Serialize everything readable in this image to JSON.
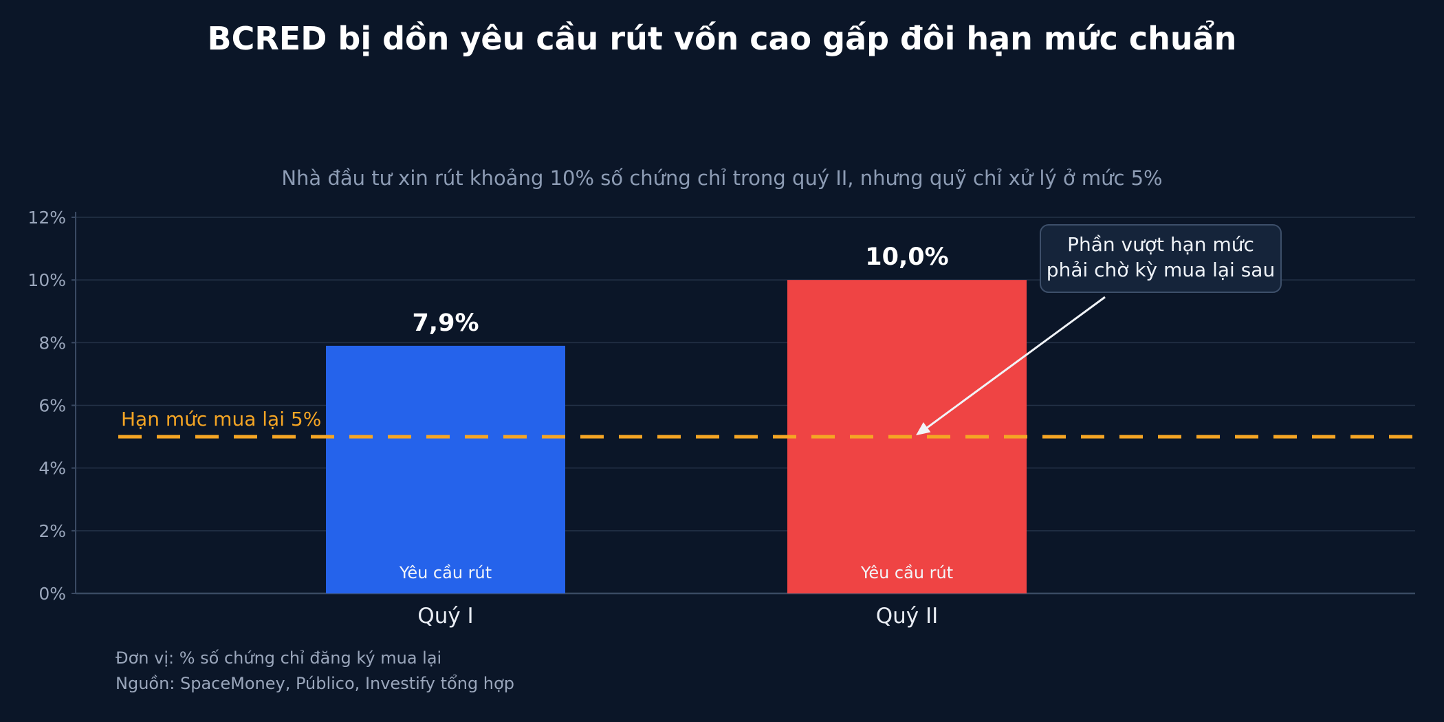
{
  "chart_data": {
    "type": "bar",
    "title": "BCRED bị dồn yêu cầu rút vốn cao gấp đôi hạn mức chuẩn",
    "subtitle": "Nhà đầu tư xin rút khoảng 10% số chứng chỉ trong quý II, nhưng quỹ chỉ xử lý ở mức 5%",
    "categories": [
      "Quý I",
      "Quý II"
    ],
    "values": [
      7.9,
      10.0
    ],
    "value_labels": [
      "7,9%",
      "10,0%"
    ],
    "bar_inner_labels": [
      "Yêu cầu rút",
      "Yêu cầu rút"
    ],
    "bar_colors": [
      "#2563eb",
      "#ef4444"
    ],
    "ylim": [
      0,
      12
    ],
    "yticks": [
      0,
      2,
      4,
      6,
      8,
      10,
      12
    ],
    "ytick_labels": [
      "0%",
      "2%",
      "4%",
      "6%",
      "8%",
      "10%",
      "12%"
    ],
    "grid": true,
    "threshold": {
      "value": 5,
      "label": "Hạn mức mua lại 5%",
      "color": "#f5a524",
      "style": "dashed"
    },
    "annotation": {
      "lines": [
        "Phần vượt hạn mức",
        "phải chờ kỳ mua lại sau"
      ],
      "target_category": "Quý II",
      "target_value": 5
    },
    "footnotes": [
      "Đơn vị: % số chứng chỉ đăng ký mua lại",
      "Nguồn: SpaceMoney, Público, Investify tổng hợp"
    ]
  },
  "colors": {
    "background": "#0b1628",
    "grid": "#243247",
    "axis": "#3a4a63",
    "annotation_box": "#15243a",
    "annotation_border": "#3d4f6a"
  }
}
